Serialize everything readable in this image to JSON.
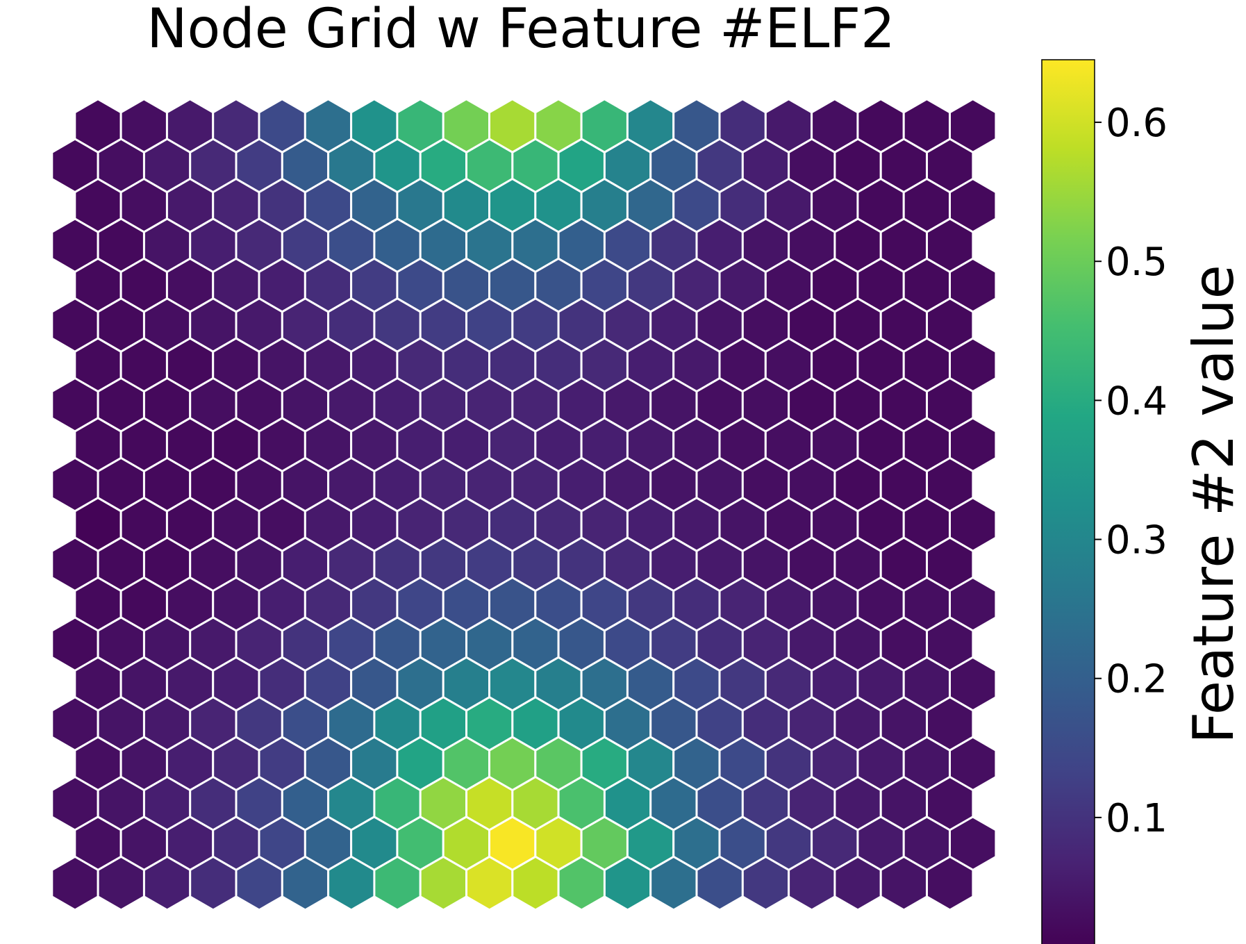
{
  "chart_data": {
    "type": "heatmap",
    "subtype": "hexagonal-som-grid",
    "title": "Node Grid w Feature #ELF2",
    "colormap": "viridis",
    "colorbar": {
      "label": "Feature #2 value",
      "vmin": 0.005,
      "vmax": 0.645,
      "ticks": [
        0.1,
        0.2,
        0.3,
        0.4,
        0.5,
        0.6
      ],
      "tick_labels": [
        "0.1",
        "0.2",
        "0.3",
        "0.4",
        "0.5",
        "0.6"
      ],
      "placement": "right"
    },
    "grid": {
      "rows": 20,
      "cols": 20,
      "layout": "hexagonal",
      "row_order": "top-to-bottom"
    },
    "values": [
      [
        0.02,
        0.03,
        0.05,
        0.08,
        0.15,
        0.24,
        0.33,
        0.43,
        0.51,
        0.56,
        0.53,
        0.43,
        0.3,
        0.18,
        0.09,
        0.05,
        0.03,
        0.02,
        0.02,
        0.02
      ],
      [
        0.02,
        0.03,
        0.05,
        0.08,
        0.12,
        0.19,
        0.26,
        0.34,
        0.4,
        0.44,
        0.43,
        0.38,
        0.29,
        0.19,
        0.11,
        0.06,
        0.03,
        0.02,
        0.02,
        0.02
      ],
      [
        0.02,
        0.03,
        0.05,
        0.07,
        0.1,
        0.15,
        0.21,
        0.26,
        0.31,
        0.34,
        0.33,
        0.28,
        0.22,
        0.15,
        0.09,
        0.05,
        0.03,
        0.02,
        0.02,
        0.02
      ],
      [
        0.02,
        0.02,
        0.04,
        0.06,
        0.08,
        0.12,
        0.16,
        0.2,
        0.23,
        0.25,
        0.24,
        0.2,
        0.15,
        0.1,
        0.06,
        0.04,
        0.03,
        0.02,
        0.02,
        0.02
      ],
      [
        0.02,
        0.02,
        0.03,
        0.05,
        0.06,
        0.09,
        0.12,
        0.15,
        0.17,
        0.18,
        0.17,
        0.14,
        0.11,
        0.07,
        0.05,
        0.03,
        0.02,
        0.02,
        0.02,
        0.02
      ],
      [
        0.02,
        0.02,
        0.03,
        0.04,
        0.05,
        0.07,
        0.09,
        0.11,
        0.12,
        0.13,
        0.12,
        0.1,
        0.08,
        0.06,
        0.04,
        0.03,
        0.02,
        0.02,
        0.02,
        0.02
      ],
      [
        0.02,
        0.02,
        0.02,
        0.03,
        0.04,
        0.05,
        0.06,
        0.08,
        0.09,
        0.09,
        0.09,
        0.08,
        0.06,
        0.05,
        0.03,
        0.03,
        0.02,
        0.02,
        0.02,
        0.02
      ],
      [
        0.02,
        0.02,
        0.02,
        0.03,
        0.03,
        0.04,
        0.05,
        0.06,
        0.07,
        0.07,
        0.07,
        0.06,
        0.05,
        0.04,
        0.03,
        0.03,
        0.02,
        0.02,
        0.02,
        0.02
      ],
      [
        0.02,
        0.02,
        0.02,
        0.02,
        0.03,
        0.04,
        0.05,
        0.06,
        0.06,
        0.07,
        0.06,
        0.06,
        0.05,
        0.04,
        0.03,
        0.03,
        0.03,
        0.02,
        0.02,
        0.02
      ],
      [
        0.02,
        0.02,
        0.02,
        0.02,
        0.03,
        0.04,
        0.05,
        0.06,
        0.07,
        0.07,
        0.07,
        0.06,
        0.05,
        0.04,
        0.04,
        0.03,
        0.03,
        0.02,
        0.02,
        0.02
      ],
      [
        0.01,
        0.02,
        0.02,
        0.03,
        0.03,
        0.05,
        0.06,
        0.07,
        0.08,
        0.09,
        0.08,
        0.07,
        0.06,
        0.05,
        0.04,
        0.03,
        0.03,
        0.02,
        0.02,
        0.02
      ],
      [
        0.02,
        0.02,
        0.02,
        0.03,
        0.04,
        0.06,
        0.08,
        0.1,
        0.11,
        0.12,
        0.11,
        0.1,
        0.08,
        0.06,
        0.05,
        0.04,
        0.03,
        0.03,
        0.02,
        0.02
      ],
      [
        0.02,
        0.02,
        0.03,
        0.04,
        0.06,
        0.08,
        0.11,
        0.14,
        0.16,
        0.17,
        0.16,
        0.14,
        0.11,
        0.09,
        0.07,
        0.05,
        0.04,
        0.03,
        0.03,
        0.03
      ],
      [
        0.02,
        0.03,
        0.04,
        0.05,
        0.07,
        0.1,
        0.14,
        0.18,
        0.21,
        0.22,
        0.21,
        0.18,
        0.15,
        0.12,
        0.09,
        0.07,
        0.05,
        0.04,
        0.03,
        0.03
      ],
      [
        0.03,
        0.04,
        0.05,
        0.06,
        0.09,
        0.13,
        0.18,
        0.24,
        0.28,
        0.3,
        0.28,
        0.24,
        0.19,
        0.15,
        0.11,
        0.08,
        0.06,
        0.05,
        0.04,
        0.03
      ],
      [
        0.03,
        0.04,
        0.05,
        0.07,
        0.11,
        0.16,
        0.23,
        0.31,
        0.37,
        0.4,
        0.37,
        0.31,
        0.24,
        0.18,
        0.13,
        0.09,
        0.07,
        0.05,
        0.04,
        0.03
      ],
      [
        0.03,
        0.04,
        0.06,
        0.08,
        0.12,
        0.18,
        0.27,
        0.38,
        0.47,
        0.51,
        0.48,
        0.4,
        0.3,
        0.21,
        0.15,
        0.1,
        0.07,
        0.05,
        0.04,
        0.03
      ],
      [
        0.03,
        0.04,
        0.06,
        0.09,
        0.13,
        0.2,
        0.3,
        0.43,
        0.54,
        0.59,
        0.56,
        0.46,
        0.33,
        0.23,
        0.16,
        0.11,
        0.07,
        0.05,
        0.04,
        0.03
      ],
      [
        0.03,
        0.04,
        0.06,
        0.09,
        0.14,
        0.21,
        0.31,
        0.45,
        0.57,
        0.64,
        0.6,
        0.49,
        0.35,
        0.24,
        0.16,
        0.11,
        0.08,
        0.05,
        0.04,
        0.03
      ],
      [
        0.03,
        0.04,
        0.06,
        0.09,
        0.14,
        0.21,
        0.31,
        0.44,
        0.56,
        0.61,
        0.58,
        0.47,
        0.34,
        0.24,
        0.16,
        0.11,
        0.07,
        0.05,
        0.04,
        0.03
      ]
    ]
  }
}
